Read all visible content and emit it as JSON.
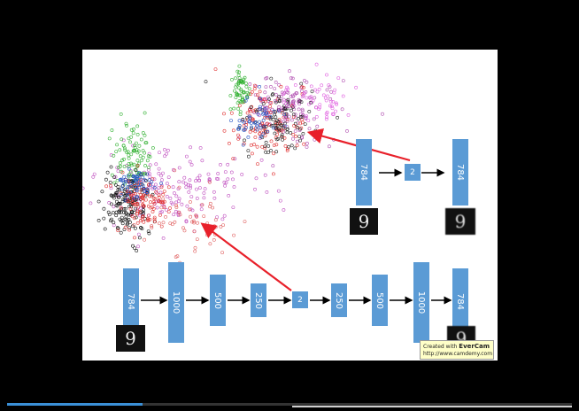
{
  "video": {
    "progress": 0.24
  },
  "watermark": {
    "line1_prefix": "Created with ",
    "brand": "EverCam",
    "line2": "http://www.camdemy.com"
  },
  "slide": {
    "small_net": {
      "layers": [
        "784",
        "2",
        "784"
      ]
    },
    "deep_net": {
      "layers": [
        "784",
        "1000",
        "500",
        "250",
        "2",
        "250",
        "500",
        "1000",
        "784"
      ]
    },
    "digit_input": "9",
    "digit_output": "9"
  },
  "colors": {
    "block": "#5b9bd5",
    "arrow_red": "#e8202a",
    "accent": "#3a8fd6"
  }
}
